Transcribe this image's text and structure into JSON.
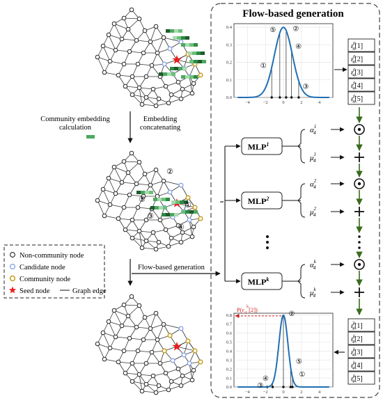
{
  "labels": {
    "title": "Flow-based generation",
    "step_left_1": "Community embedding",
    "step_left_2": "calculation",
    "step_right_1": "Embedding",
    "step_right_2": "concatenating",
    "flow_arrow_label": "Flow-based generation",
    "mlp_base": "MLP",
    "mlp_sup": [
      "1",
      "2",
      "k"
    ],
    "dots": "⋮",
    "p_label": "P(ε",
    "p_label_tail": "[2])"
  },
  "legend": {
    "non_community": "Non-community node",
    "candidate": "Candidate node",
    "community": "Community node",
    "seed": "Seed node",
    "edge": "Graph edge"
  },
  "colors": {
    "accent_blue": "#1f6fb4",
    "candidate": "#8aa8e6",
    "community": "#c9a227",
    "seed": "#e81c1c",
    "arrow_green": "#3a6b1d",
    "dashed_red": "#d62020",
    "emb_dark": "#1e5b2e",
    "emb_mid": "#4ea860",
    "emb_light": "#a9dab0"
  },
  "circled_numbers": [
    "①",
    "②",
    "③",
    "④",
    "⑤"
  ],
  "eps_top": [
    "1",
    "2",
    "3",
    "4",
    "5"
  ],
  "eps_bottom": [
    "1",
    "2",
    "3",
    "4",
    "5"
  ],
  "ops": [
    "⊙",
    "+",
    "⊙",
    "+",
    "⊙",
    "+"
  ],
  "branch_labels": [
    {
      "sym": "α",
      "sub": "4",
      "sup": "1"
    },
    {
      "sym": "μ",
      "sub": "4",
      "sup": "1"
    },
    {
      "sym": "α",
      "sub": "4",
      "sup": "2"
    },
    {
      "sym": "μ",
      "sub": "4",
      "sup": "2"
    },
    {
      "sym": "α",
      "sub": "4",
      "sup": "k"
    },
    {
      "sym": "μ",
      "sub": "4",
      "sup": "k"
    }
  ],
  "chart_data": [
    {
      "type": "line",
      "title": "",
      "xlabel": "",
      "ylabel": "",
      "xlim": [
        -5.5,
        5.5
      ],
      "ylim": [
        0,
        0.42
      ],
      "x_ticks": [
        "−4",
        "−2",
        "0",
        "2",
        "4"
      ],
      "y_ticks": [
        "0.0",
        "0.1",
        "0.2",
        "0.3",
        "0.4"
      ],
      "curve": "standard normal density, mean 0, std 1",
      "samples": [
        {
          "id": "①",
          "x": -1.3
        },
        {
          "id": "②",
          "x": 0.3
        },
        {
          "id": "③",
          "x": 1.7
        },
        {
          "id": "④",
          "x": 0.9
        },
        {
          "id": "⑤",
          "x": -0.4
        }
      ],
      "grid": true
    },
    {
      "type": "line",
      "title": "",
      "xlabel": "",
      "ylabel": "",
      "xlim": [
        -5.5,
        5.5
      ],
      "ylim": [
        0,
        0.82
      ],
      "x_ticks": [
        "−4",
        "−2",
        "0",
        "2",
        "4"
      ],
      "y_ticks": [
        "0.0",
        "0.1",
        "0.2",
        "0.3",
        "0.4",
        "0.5",
        "0.6",
        "0.7",
        "0.8"
      ],
      "curve": "normal density, mean 0, std 0.5",
      "samples": [
        {
          "id": "①",
          "x": 1.0
        },
        {
          "id": "②",
          "x": 0.0
        },
        {
          "id": "③",
          "x": -1.8
        },
        {
          "id": "④",
          "x": -1.2
        },
        {
          "id": "⑤",
          "x": 0.8
        }
      ],
      "highlight": {
        "label": "P(ε4k[2])",
        "y": 0.79
      },
      "grid": true
    }
  ]
}
